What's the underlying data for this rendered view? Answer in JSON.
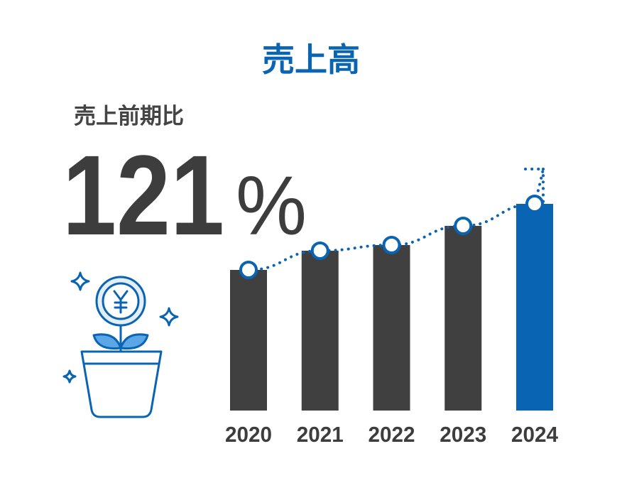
{
  "chart_data": {
    "type": "bar",
    "title": "売上高",
    "subtitle": "売上前期比",
    "annotation_value": 121,
    "annotation_unit": "%",
    "categories": [
      "2020",
      "2021",
      "2022",
      "2023",
      "2024"
    ],
    "values": [
      198,
      225,
      233,
      260,
      291
    ],
    "colors": [
      "#404040",
      "#404040",
      "#404040",
      "#404040",
      "#0a64b4"
    ],
    "marker_color": "#0a64b4"
  }
}
